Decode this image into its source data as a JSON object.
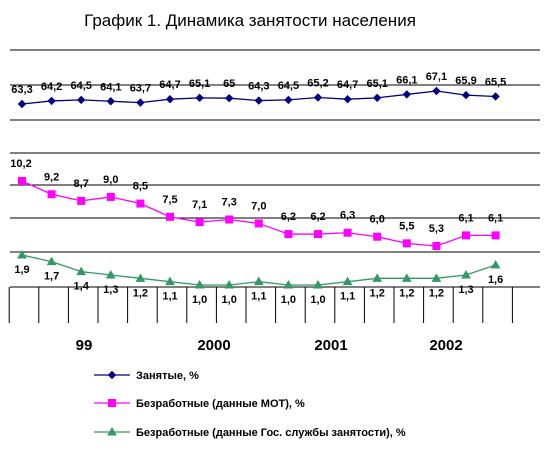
{
  "chart_data": {
    "type": "line",
    "title": "График 1. Динамика занятости населения",
    "year_labels": [
      "99",
      "2000",
      "2001",
      "2002"
    ],
    "grid": true,
    "legend_position": "bottom",
    "series": [
      {
        "name": "Занятые, %",
        "color": "#000080",
        "marker": "diamond",
        "values": [
          63.3,
          64.2,
          64.5,
          64.1,
          63.7,
          64.7,
          65.1,
          65.0,
          64.3,
          64.5,
          65.2,
          64.7,
          65.1,
          66.1,
          67.1,
          65.9,
          65.5
        ],
        "labels": [
          "63,3",
          "64,2",
          "64,5",
          "64,1",
          "63,7",
          "64,7",
          "65,1",
          "65",
          "64,3",
          "64,5",
          "65,2",
          "64,7",
          "65,1",
          "66,1",
          "67,1",
          "65,9",
          "65,5"
        ]
      },
      {
        "name": "Безработные (данные МОТ), %",
        "color": "#ff00ff",
        "marker": "square",
        "values": [
          10.2,
          9.2,
          8.7,
          9.0,
          8.5,
          7.5,
          7.1,
          7.3,
          7.0,
          6.2,
          6.2,
          6.3,
          6.0,
          5.5,
          5.3,
          6.1,
          6.1
        ],
        "labels": [
          "10,2",
          "9,2",
          "8,7",
          "9,0",
          "8,5",
          "7,5",
          "7,1",
          "7,3",
          "7,0",
          "6,2",
          "6,2",
          "6,3",
          "6,0",
          "5,5",
          "5,3",
          "6,1",
          "6,1"
        ]
      },
      {
        "name": "Безработные (данные Гос. службы занятости), %",
        "color": "#339966",
        "marker": "triangle",
        "values": [
          1.9,
          1.7,
          1.4,
          1.3,
          1.2,
          1.1,
          1.0,
          1.0,
          1.1,
          1.0,
          1.0,
          1.1,
          1.2,
          1.2,
          1.2,
          1.3,
          1.6
        ],
        "labels": [
          "1,9",
          "1,7",
          "1,4",
          "1,3",
          "1,2",
          "1,1",
          "1,0",
          "1,0",
          "1,1",
          "1,0",
          "1,0",
          "1,1",
          "1,2",
          "1,2",
          "1,2",
          "1,3",
          "1,6"
        ]
      }
    ]
  }
}
